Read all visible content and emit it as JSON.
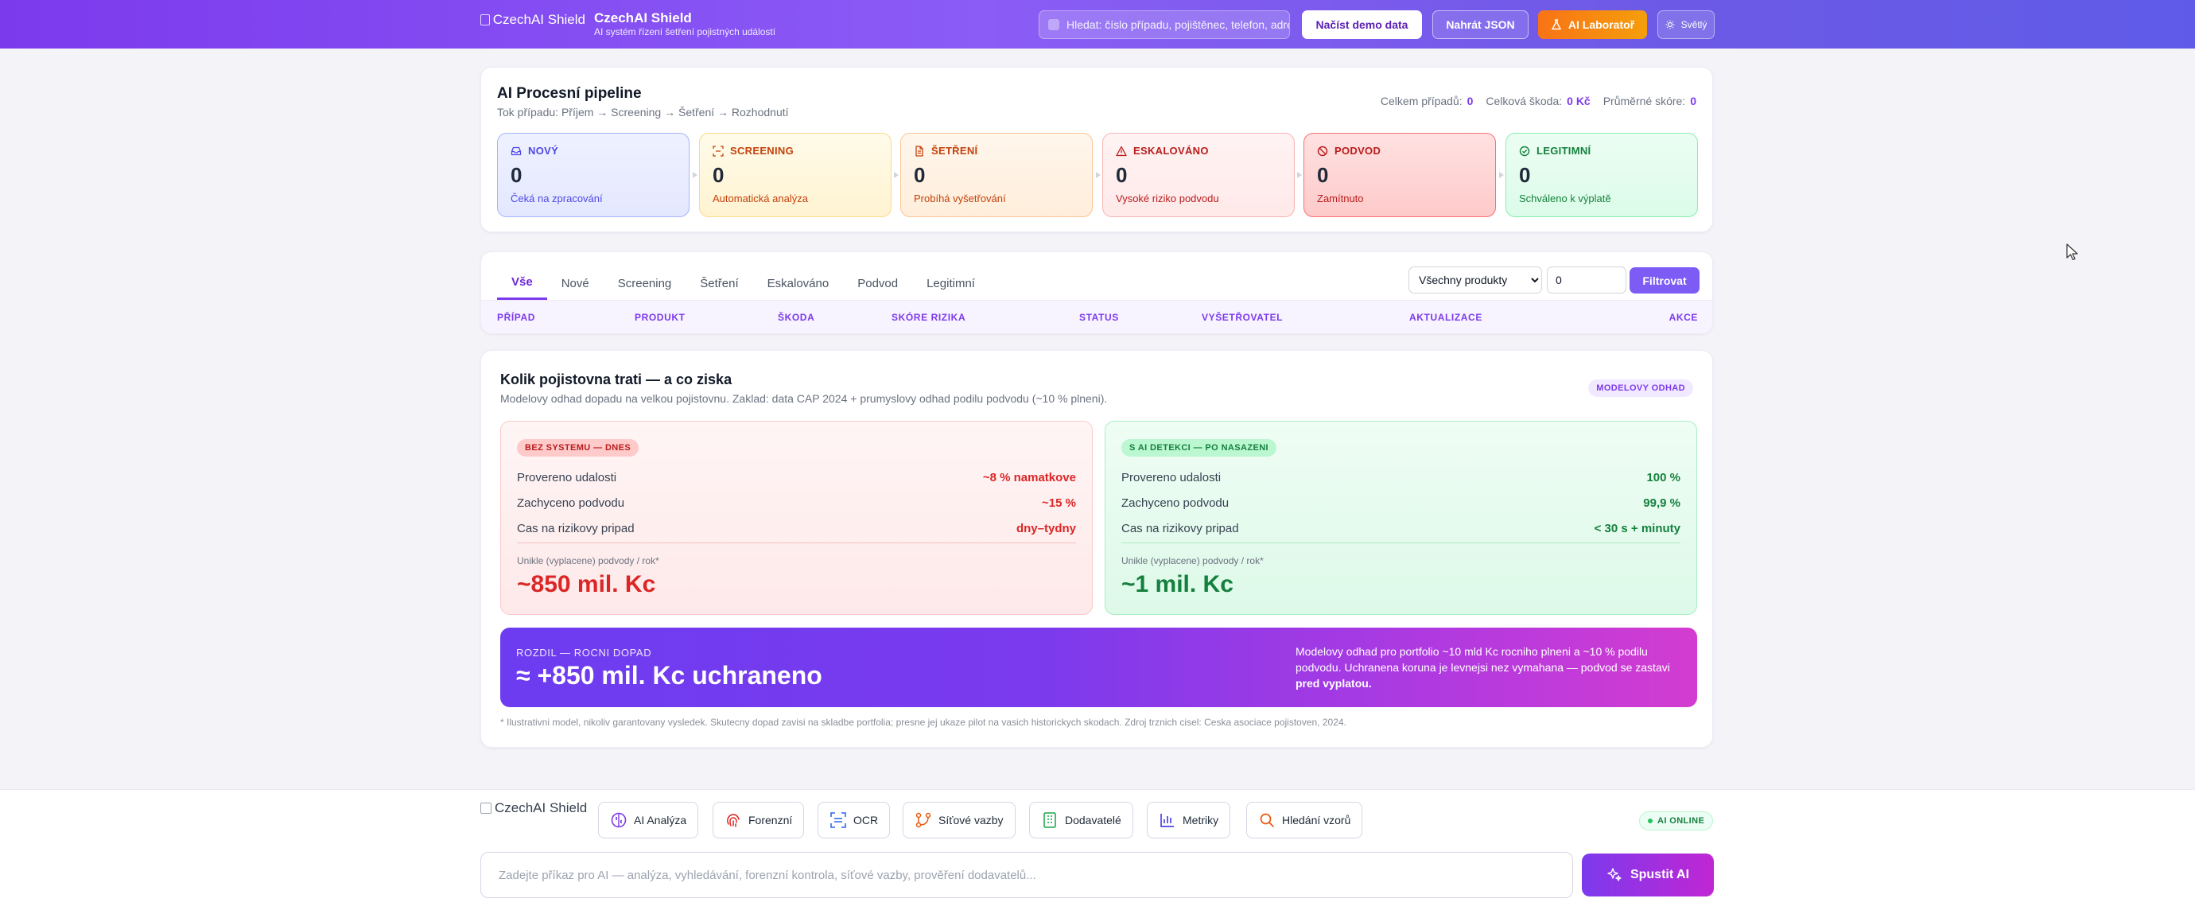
{
  "header": {
    "logo_alt": "CzechAI Shield",
    "app_name": "CzechAI Shield",
    "tagline": "AI systém řízení šetření pojistných událostí",
    "search_placeholder": "Hledat: číslo případu, pojištěnec, telefon, adresa",
    "btn_demo": "Načíst demo data",
    "btn_json": "Nahrát JSON",
    "btn_lab": "AI Laboratoř",
    "btn_theme": "Světlý"
  },
  "pipeline": {
    "title": "AI Procesní pipeline",
    "flow": "Tok případu: Příjem → Screening → Šetření → Rozhodnutí",
    "stats": [
      {
        "label": "Celkem případů:",
        "value": "0"
      },
      {
        "label": "Celková škoda:",
        "value": "0 Kč"
      },
      {
        "label": "Průměrné skóre:",
        "value": "0"
      }
    ],
    "stages": [
      {
        "label": "NOVÝ",
        "count": "0",
        "sub": "Čeká na zpracování",
        "icon": "inbox-icon"
      },
      {
        "label": "SCREENING",
        "count": "0",
        "sub": "Automatická analýza",
        "icon": "scan-icon"
      },
      {
        "label": "ŠETŘENÍ",
        "count": "0",
        "sub": "Probíhá vyšetřování",
        "icon": "document-icon"
      },
      {
        "label": "ESKALOVÁNO",
        "count": "0",
        "sub": "Vysoké riziko podvodu",
        "icon": "warning-icon"
      },
      {
        "label": "PODVOD",
        "count": "0",
        "sub": "Zamítnuto",
        "icon": "ban-icon"
      },
      {
        "label": "LEGITIMNÍ",
        "count": "0",
        "sub": "Schváleno k výplatě",
        "icon": "check-circle-icon"
      }
    ]
  },
  "cases": {
    "tabs": [
      "Vše",
      "Nové",
      "Screening",
      "Šetření",
      "Eskalováno",
      "Podvod",
      "Legitimní"
    ],
    "active_tab": "Vše",
    "product_filter": "Všechny produkty",
    "min_score": "0",
    "filter_btn": "Filtrovat",
    "columns": [
      "PŘÍPAD",
      "PRODUKT",
      "ŠKODA",
      "SKÓRE RIZIKA",
      "STATUS",
      "VYŠETŘOVATEL",
      "AKTUALIZACE",
      "AKCE"
    ]
  },
  "impact": {
    "title": "Kolik pojistovna trati — a co ziska",
    "subtitle": "Modelovy odhad dopadu na velkou pojistovnu. Zaklad: data CAP 2024 + prumyslovy odhad podilu podvodu (~10 % plneni).",
    "badge": "MODELOVY ODHAD",
    "without": {
      "badge": "BEZ SYSTEMU — DNES",
      "rows": [
        {
          "label": "Provereno udalosti",
          "value": "~8 % namatkove"
        },
        {
          "label": "Zachyceno podvodu",
          "value": "~15 %"
        },
        {
          "label": "Cas na rizikovy pripad",
          "value": "dny–tydny"
        }
      ],
      "big_label": "Unikle (vyplacene) podvody / rok*",
      "big_value": "~850 mil. Kc"
    },
    "with": {
      "badge": "S AI DETEKCI — PO NASAZENI",
      "rows": [
        {
          "label": "Provereno udalosti",
          "value": "100 %"
        },
        {
          "label": "Zachyceno podvodu",
          "value": "99,9 %"
        },
        {
          "label": "Cas na rizikovy pripad",
          "value": "< 30 s + minuty"
        }
      ],
      "big_label": "Unikle (vyplacene) podvody / rok*",
      "big_value": "~1 mil. Kc"
    },
    "diff": {
      "label": "ROZDIL — ROCNI DOPAD",
      "value": "≈ +850 mil. Kc uchraneno",
      "note": "Modelovy odhad pro portfolio ~10 mld Kc rocniho plneni a ~10 % podilu podvodu. Uchranena koruna je levnejsi nez vymahana — podvod se zastavi ",
      "note_bold": "pred vyplatou."
    },
    "footnote": "* Ilustrativni model, nikoliv garantovany vysledek. Skutecny dopad zavisi na skladbe portfolia; presne jej ukaze pilot na vasich historickych skodach. Zdroj trznich cisel: Ceska asociace pojistoven, 2024."
  },
  "bottom": {
    "logo_alt": "CzechAI Shield",
    "tools": [
      {
        "label": "AI Analýza",
        "icon": "brain-icon"
      },
      {
        "label": "Forenzní",
        "icon": "fingerprint-icon"
      },
      {
        "label": "OCR",
        "icon": "ocr-scan-icon"
      },
      {
        "label": "Síťové vazby",
        "icon": "network-icon"
      },
      {
        "label": "Dodavatelé",
        "icon": "building-icon"
      },
      {
        "label": "Metriky",
        "icon": "bar-chart-icon"
      },
      {
        "label": "Hledání vzorů",
        "icon": "search-icon"
      }
    ],
    "status": "AI ONLINE",
    "command_placeholder": "Zadejte příkaz pro AI — analýza, vyhledávání, forenzní kontrola, síťové vazby, prověření dodavatelů...",
    "run_btn": "Spustit AI"
  },
  "colors": {
    "brand": "#7c3aed",
    "accent_orange": "#f97316",
    "danger": "#dc2626",
    "success": "#15803d"
  }
}
